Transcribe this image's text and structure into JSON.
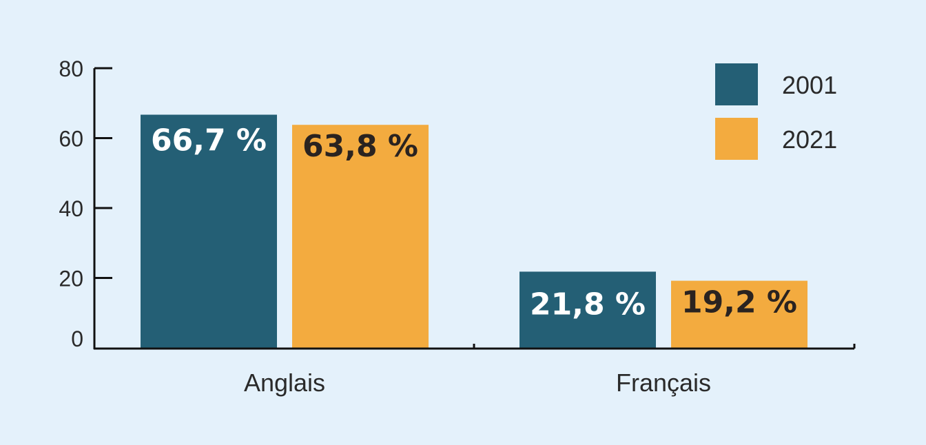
{
  "chart_data": {
    "type": "bar",
    "categories": [
      "Anglais",
      "Français"
    ],
    "series": [
      {
        "name": "2001",
        "values": [
          66.7,
          21.8
        ],
        "labels": [
          "66,7 %",
          "21,8 %"
        ],
        "color": "#245f75",
        "label_color": "#ffffff"
      },
      {
        "name": "2021",
        "values": [
          63.8,
          19.2
        ],
        "labels": [
          "63,8 %",
          "19,2 %"
        ],
        "color": "#f3ab3f",
        "label_color": "#2a2320"
      }
    ],
    "ylim": [
      0,
      80
    ],
    "yticks": [
      "0",
      "20",
      "40",
      "60",
      "80"
    ],
    "title": "",
    "xlabel": "",
    "ylabel": "",
    "legend_position": "top-right",
    "grid": false
  }
}
